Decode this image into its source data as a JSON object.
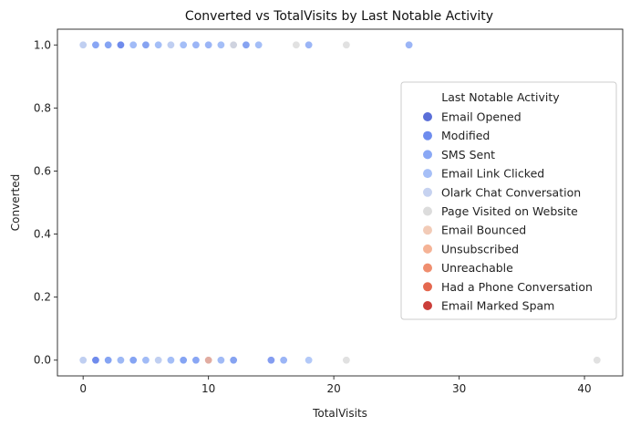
{
  "chart_data": {
    "type": "scatter",
    "title": "Converted vs TotalVisits by Last Notable Activity",
    "xlabel": "TotalVisits",
    "ylabel": "Converted",
    "xlim": [
      -2.05,
      43.05
    ],
    "ylim": [
      -0.05,
      1.05
    ],
    "xticks": [
      0,
      10,
      20,
      30,
      40
    ],
    "xtick_labels": [
      "0",
      "10",
      "20",
      "30",
      "40"
    ],
    "yticks": [
      0.0,
      0.2,
      0.4,
      0.6,
      0.8,
      1.0
    ],
    "ytick_labels": [
      "0.0",
      "0.2",
      "0.4",
      "0.6",
      "0.8",
      "1.0"
    ],
    "grid": false,
    "legend": {
      "title": "Last Notable Activity",
      "placement": "right"
    },
    "series": [
      {
        "name": "Email Opened",
        "color": "#5a6fd8",
        "points": [
          [
            2,
            1
          ],
          [
            3,
            1
          ],
          [
            4,
            1
          ],
          [
            5,
            1
          ],
          [
            12,
            1
          ],
          [
            13,
            1
          ],
          [
            0,
            0
          ],
          [
            1,
            0
          ],
          [
            2,
            0
          ],
          [
            3,
            0
          ],
          [
            4,
            0
          ],
          [
            5,
            0
          ],
          [
            8,
            0
          ],
          [
            10,
            0
          ],
          [
            12,
            0
          ]
        ]
      },
      {
        "name": "Modified",
        "color": "#6e8cee",
        "points": [
          [
            0,
            1
          ],
          [
            1,
            1
          ],
          [
            2,
            1
          ],
          [
            3,
            1
          ],
          [
            4,
            1
          ],
          [
            0,
            0
          ],
          [
            1,
            0
          ],
          [
            2,
            0
          ],
          [
            3,
            0
          ],
          [
            4,
            0
          ],
          [
            6,
            0
          ],
          [
            8,
            0
          ],
          [
            9,
            0
          ],
          [
            11,
            0
          ],
          [
            15,
            0
          ]
        ]
      },
      {
        "name": "SMS Sent",
        "color": "#8aa8f5",
        "points": [
          [
            0,
            1
          ],
          [
            1,
            1
          ],
          [
            2,
            1
          ],
          [
            4,
            1
          ],
          [
            5,
            1
          ],
          [
            6,
            1
          ],
          [
            7,
            1
          ],
          [
            8,
            1
          ],
          [
            9,
            1
          ],
          [
            10,
            1
          ],
          [
            11,
            1
          ],
          [
            12,
            1
          ],
          [
            13,
            1
          ],
          [
            14,
            1
          ],
          [
            18,
            1
          ],
          [
            26,
            1
          ],
          [
            0,
            0
          ],
          [
            2,
            0
          ],
          [
            4,
            0
          ],
          [
            5,
            0
          ],
          [
            7,
            0
          ],
          [
            8,
            0
          ],
          [
            9,
            0
          ],
          [
            12,
            0
          ],
          [
            16,
            0
          ]
        ]
      },
      {
        "name": "Email Link Clicked",
        "color": "#a6bff7",
        "points": [
          [
            0,
            1
          ],
          [
            4,
            1
          ],
          [
            6,
            1
          ],
          [
            8,
            1
          ],
          [
            11,
            1
          ],
          [
            14,
            1
          ],
          [
            0,
            0
          ],
          [
            3,
            0
          ],
          [
            5,
            0
          ],
          [
            6,
            0
          ],
          [
            7,
            0
          ],
          [
            11,
            0
          ],
          [
            18,
            0
          ]
        ]
      },
      {
        "name": "Olark Chat Conversation",
        "color": "#c6d2f0",
        "points": [
          [
            0,
            1
          ],
          [
            7,
            1
          ],
          [
            0,
            0
          ],
          [
            6,
            0
          ]
        ]
      },
      {
        "name": "Page Visited on Website",
        "color": "#dcdcdc",
        "points": [
          [
            12,
            1
          ],
          [
            17,
            1
          ],
          [
            21,
            1
          ],
          [
            21,
            0
          ],
          [
            41,
            0
          ]
        ]
      },
      {
        "name": "Email Bounced",
        "color": "#f2cbb7",
        "points": []
      },
      {
        "name": "Unsubscribed",
        "color": "#f5b396",
        "points": [
          [
            10,
            0
          ]
        ]
      },
      {
        "name": "Unreachable",
        "color": "#ef8e6f",
        "points": []
      },
      {
        "name": "Had a Phone Conversation",
        "color": "#e4684f",
        "points": []
      },
      {
        "name": "Email Marked Spam",
        "color": "#cb3e3a",
        "points": []
      }
    ]
  }
}
